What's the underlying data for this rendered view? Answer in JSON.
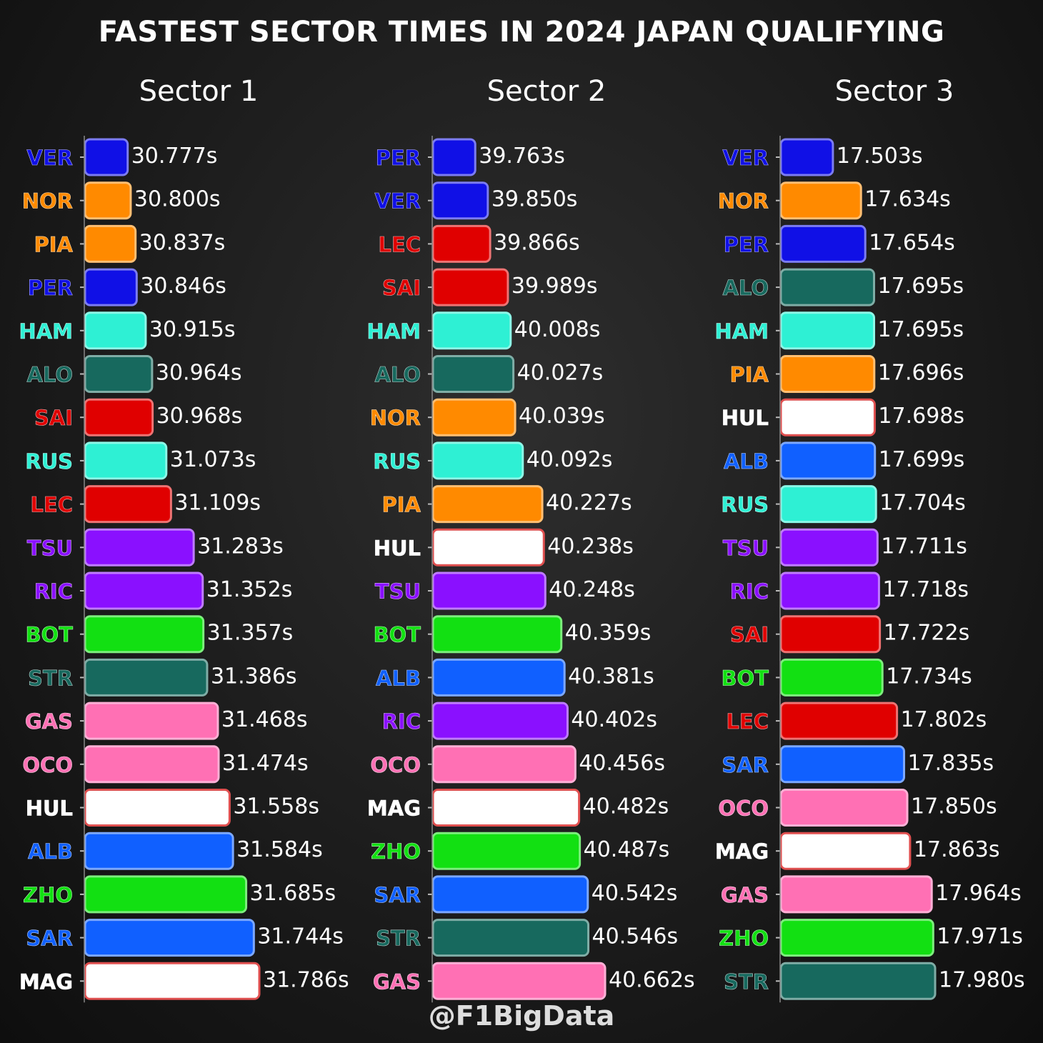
{
  "chart_data": {
    "type": "bar",
    "orientation": "horizontal",
    "title": "FASTEST SECTOR TIMES IN 2024 JAPAN QUALIFYING",
    "watermark": "@F1BigData",
    "team_colors": {
      "VER": "#1010e6",
      "PER": "#1010e6",
      "NOR": "#ff8a00",
      "PIA": "#ff8a00",
      "HAM": "#2ef0d4",
      "RUS": "#2ef0d4",
      "ALO": "#17695e",
      "STR": "#17695e",
      "SAI": "#e00000",
      "LEC": "#e00000",
      "TSU": "#8a10ff",
      "RIC": "#8a10ff",
      "BOT": "#12e012",
      "ZHO": "#12e012",
      "GAS": "#ff70b4",
      "OCO": "#ff70b4",
      "HUL": "#ffffff",
      "MAG": "#ffffff",
      "ALB": "#1060ff",
      "SAR": "#1060ff"
    },
    "panels": [
      {
        "sector": "Sector 1",
        "drivers": [
          "VER",
          "NOR",
          "PIA",
          "PER",
          "HAM",
          "ALO",
          "SAI",
          "RUS",
          "LEC",
          "TSU",
          "RIC",
          "BOT",
          "STR",
          "GAS",
          "OCO",
          "HUL",
          "ALB",
          "ZHO",
          "SAR",
          "MAG"
        ],
        "values": [
          30.777,
          30.8,
          30.837,
          30.846,
          30.915,
          30.964,
          30.968,
          31.073,
          31.109,
          31.283,
          31.352,
          31.357,
          31.386,
          31.468,
          31.474,
          31.558,
          31.584,
          31.685,
          31.744,
          31.786
        ],
        "labels": [
          "30.777s",
          "30.800s",
          "30.837s",
          "30.846s",
          "30.915s",
          "30.964s",
          "30.968s",
          "31.073s",
          "31.109s",
          "31.283s",
          "31.352s",
          "31.357s",
          "31.386s",
          "31.468s",
          "31.474s",
          "31.558s",
          "31.584s",
          "31.685s",
          "31.744s",
          "31.786s"
        ],
        "xlim": [
          30.45,
          31.786
        ]
      },
      {
        "sector": "Sector 2",
        "drivers": [
          "PER",
          "VER",
          "LEC",
          "SAI",
          "HAM",
          "ALO",
          "NOR",
          "RUS",
          "PIA",
          "HUL",
          "TSU",
          "BOT",
          "ALB",
          "RIC",
          "OCO",
          "MAG",
          "ZHO",
          "SAR",
          "STR",
          "GAS"
        ],
        "values": [
          39.763,
          39.85,
          39.866,
          39.989,
          40.008,
          40.027,
          40.039,
          40.092,
          40.227,
          40.238,
          40.248,
          40.359,
          40.381,
          40.402,
          40.456,
          40.482,
          40.487,
          40.542,
          40.546,
          40.662
        ],
        "labels": [
          "39.763s",
          "39.850s",
          "39.866s",
          "39.989s",
          "40.008s",
          "40.027s",
          "40.039s",
          "40.092s",
          "40.227s",
          "40.238s",
          "40.248s",
          "40.359s",
          "40.381s",
          "40.402s",
          "40.456s",
          "40.482s",
          "40.487s",
          "40.542s",
          "40.546s",
          "40.662s"
        ],
        "xlim": [
          39.47,
          40.662
        ]
      },
      {
        "sector": "Sector 3",
        "drivers": [
          "VER",
          "NOR",
          "PER",
          "ALO",
          "HAM",
          "PIA",
          "HUL",
          "ALB",
          "RUS",
          "TSU",
          "RIC",
          "SAI",
          "BOT",
          "LEC",
          "SAR",
          "OCO",
          "MAG",
          "GAS",
          "ZHO",
          "STR"
        ],
        "values": [
          17.503,
          17.634,
          17.654,
          17.695,
          17.695,
          17.696,
          17.698,
          17.699,
          17.704,
          17.711,
          17.718,
          17.722,
          17.734,
          17.802,
          17.835,
          17.85,
          17.863,
          17.964,
          17.971,
          17.98
        ],
        "labels": [
          "17.503s",
          "17.634s",
          "17.654s",
          "17.695s",
          "17.695s",
          "17.696s",
          "17.698s",
          "17.699s",
          "17.704s",
          "17.711s",
          "17.718s",
          "17.722s",
          "17.734s",
          "17.802s",
          "17.835s",
          "17.850s",
          "17.863s",
          "17.964s",
          "17.971s",
          "17.980s"
        ],
        "xlim": [
          17.26,
          17.98
        ]
      }
    ]
  }
}
